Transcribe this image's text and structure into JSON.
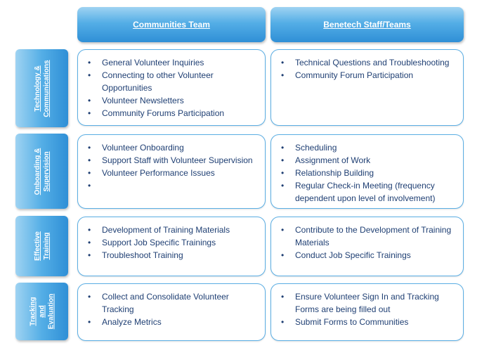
{
  "headers": [
    "Communities Team",
    "Benetech Staff/Teams"
  ],
  "rows": [
    {
      "label": "Technology &\nCommunications",
      "communities": [
        "General Volunteer Inquiries",
        "Connecting to other Volunteer Opportunities",
        "Volunteer Newsletters",
        "Community Forums Participation"
      ],
      "benetech": [
        "Technical Questions and Troubleshooting",
        "Community Forum Participation"
      ]
    },
    {
      "label": "Onboarding &\nSupervision",
      "communities": [
        "Volunteer Onboarding",
        "Support Staff with Volunteer Supervision",
        "Volunteer Performance Issues",
        ""
      ],
      "benetech": [
        "Scheduling",
        "Assignment of Work",
        "Relationship Building",
        "Regular Check-in Meeting (frequency dependent upon level of involvement)"
      ]
    },
    {
      "label": "Effective\nTraining",
      "communities": [
        "Development of Training Materials",
        "Support Job Specific Trainings",
        "Troubleshoot Training"
      ],
      "benetech": [
        "Contribute to the Development of Training Materials",
        "Conduct Job Specific Trainings"
      ]
    },
    {
      "label": "Tracking\nand\nEvaluation",
      "communities": [
        "Collect and Consolidate Volunteer Tracking",
        "Analyze Metrics"
      ],
      "benetech": [
        "Ensure Volunteer Sign In and Tracking Forms are being filled out",
        "Submit Forms to Communities"
      ]
    }
  ]
}
